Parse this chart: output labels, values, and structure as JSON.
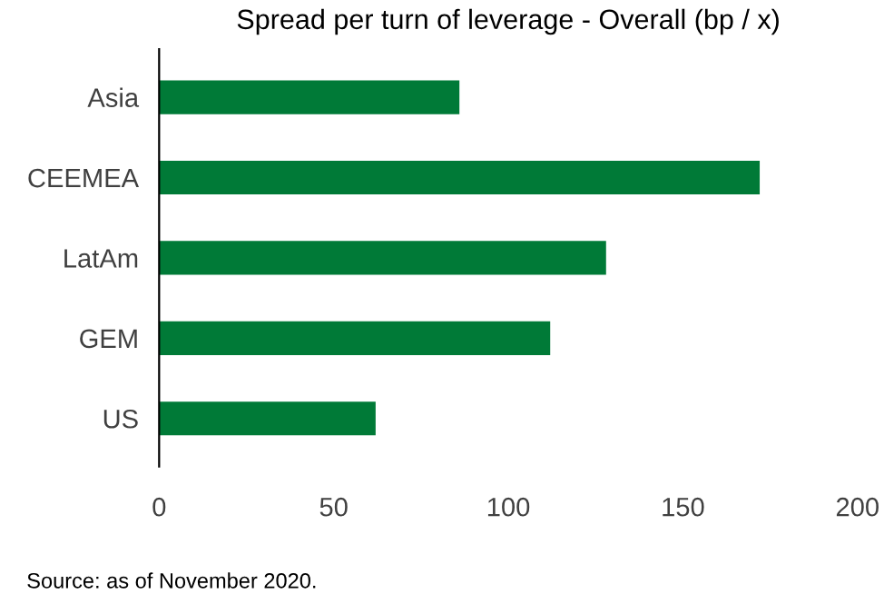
{
  "chart_data": {
    "type": "bar",
    "orientation": "horizontal",
    "title": "Spread per turn of leverage - Overall (bp / x)",
    "categories": [
      "Asia",
      "CEEMEA",
      "LatAm",
      "GEM",
      "US"
    ],
    "values": [
      86,
      172,
      128,
      112,
      62
    ],
    "color": "#007a37",
    "xlim": [
      0,
      200
    ],
    "xticks": [
      0,
      50,
      100,
      150,
      200
    ],
    "grid": false,
    "annotations": [
      "Source: as of November 2020."
    ]
  }
}
